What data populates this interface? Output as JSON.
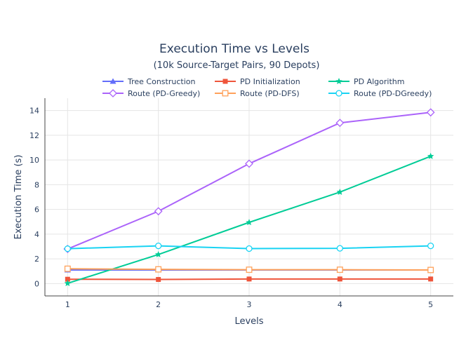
{
  "chart_data": {
    "type": "line",
    "title": "Execution Time vs Levels",
    "subtitle": "(10k Source-Target Pairs, 90 Depots)",
    "xlabel": "Levels",
    "ylabel": "Execution Time (s)",
    "x": [
      1,
      2,
      3,
      4,
      5
    ],
    "x_ticks": [
      "1",
      "2",
      "3",
      "4",
      "5"
    ],
    "xlim": [
      0.75,
      5.25
    ],
    "ylim": [
      -1,
      15
    ],
    "y_ticks": [
      0,
      2,
      4,
      6,
      8,
      10,
      12,
      14
    ],
    "grid": true,
    "legend_position": "top",
    "series": [
      {
        "name": "Tree Construction",
        "values": [
          1.1,
          1.1,
          1.1,
          1.1,
          1.1
        ],
        "color": "#636efa",
        "marker": "triangle-up"
      },
      {
        "name": "PD Initialization",
        "values": [
          0.35,
          0.33,
          0.37,
          0.37,
          0.37
        ],
        "color": "#ef553b",
        "marker": "square"
      },
      {
        "name": "PD Algorithm",
        "values": [
          0.02,
          2.35,
          4.95,
          7.4,
          10.3
        ],
        "color": "#00cc96",
        "marker": "star"
      },
      {
        "name": "Route (PD-Greedy)",
        "values": [
          2.8,
          5.85,
          9.7,
          13.0,
          13.85
        ],
        "color": "#ab63fa",
        "marker": "diamond-open"
      },
      {
        "name": "Route (PD-DFS)",
        "values": [
          1.2,
          1.15,
          1.12,
          1.12,
          1.1
        ],
        "color": "#ffa15a",
        "marker": "square-open"
      },
      {
        "name": "Route (PD-DGreedy)",
        "values": [
          2.82,
          3.05,
          2.83,
          2.85,
          3.05
        ],
        "color": "#19d3f3",
        "marker": "circle-open"
      }
    ]
  }
}
